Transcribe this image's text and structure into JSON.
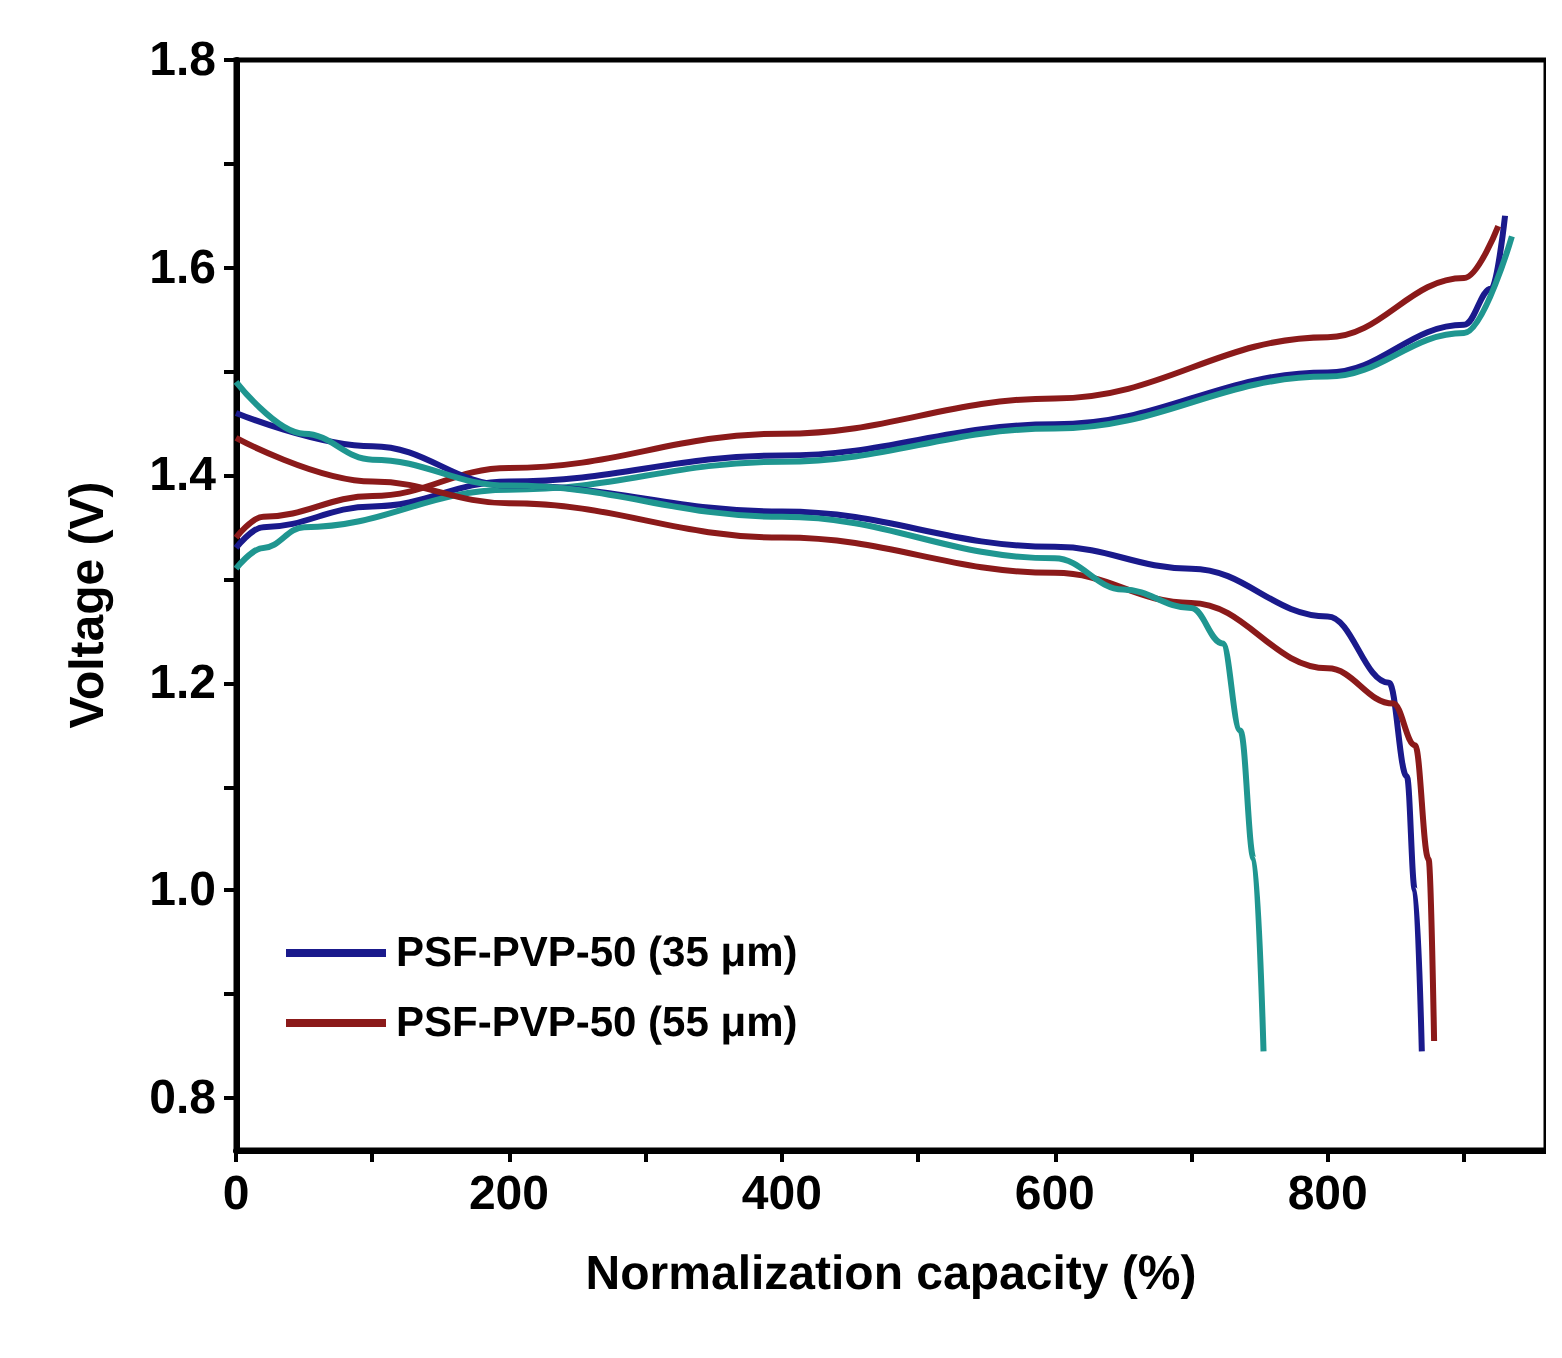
{
  "chart_data": {
    "type": "line",
    "xlabel": "Normalization capacity (%)",
    "ylabel": "Voltage (V)",
    "xlim": [
      0,
      960
    ],
    "xticks": [
      0,
      {
        "value": 100,
        "label": null
      },
      200,
      {
        "value": 300,
        "label": null
      },
      400,
      {
        "value": 500,
        "label": null
      },
      600,
      {
        "value": 700,
        "label": null
      },
      800,
      {
        "value": 900,
        "label": null
      }
    ],
    "ylim": [
      0.75,
      1.8
    ],
    "yticks": [
      {
        "value": 0.8,
        "label": "0.8"
      },
      {
        "value": 0.9,
        "label": null
      },
      {
        "value": 1.0,
        "label": "1.0"
      },
      {
        "value": 1.1,
        "label": null
      },
      {
        "value": 1.2,
        "label": "1.2"
      },
      {
        "value": 1.3,
        "label": null
      },
      {
        "value": 1.4,
        "label": "1.4"
      },
      {
        "value": 1.5,
        "label": null
      },
      {
        "value": 1.6,
        "label": "1.6"
      },
      {
        "value": 1.7,
        "label": null
      },
      {
        "value": 1.8,
        "label": "1.8"
      }
    ],
    "legend": "bottom left",
    "grid": false,
    "marker": "none",
    "line_style": "solid",
    "series": [
      {
        "name": "PSF-PVP-50 (35 μm)",
        "color": "#1a1a8c",
        "x": [
          0,
          20,
          100,
          200,
          400,
          600,
          800,
          900,
          920,
          930
        ],
        "values": [
          1.33,
          1.35,
          1.37,
          1.394,
          1.419,
          1.449,
          1.499,
          1.545,
          1.58,
          1.65
        ]
      },
      {
        "name": "PSF-PVP-50 (55 μm)",
        "color": "#8b1a1a",
        "x": [
          0,
          20,
          100,
          200,
          400,
          600,
          800,
          900,
          925
        ],
        "values": [
          1.34,
          1.36,
          1.38,
          1.407,
          1.44,
          1.474,
          1.533,
          1.59,
          1.64
        ]
      },
      {
        "color": "#1f9690",
        "x": [
          0,
          20,
          50,
          200,
          400,
          600,
          800,
          900,
          935
        ],
        "values": [
          1.31,
          1.33,
          1.35,
          1.386,
          1.413,
          1.445,
          1.495,
          1.537,
          1.63
        ]
      },
      {
        "color": "#1a1a8c",
        "x": [
          0,
          100,
          200,
          400,
          600,
          700,
          800,
          845,
          858,
          864,
          869
        ],
        "values": [
          1.46,
          1.428,
          1.39,
          1.365,
          1.331,
          1.31,
          1.264,
          1.2,
          1.11,
          1.0,
          0.845
        ]
      },
      {
        "color": "#8b1a1a",
        "x": [
          0,
          100,
          200,
          400,
          600,
          700,
          800,
          848,
          864,
          874,
          878
        ],
        "values": [
          1.436,
          1.394,
          1.373,
          1.34,
          1.306,
          1.277,
          1.214,
          1.18,
          1.14,
          1.03,
          0.855
        ]
      },
      {
        "color": "#1f9690",
        "x": [
          0,
          50,
          100,
          200,
          400,
          600,
          650,
          700,
          723,
          736,
          746,
          753
        ],
        "values": [
          1.49,
          1.44,
          1.415,
          1.39,
          1.36,
          1.32,
          1.29,
          1.272,
          1.238,
          1.154,
          1.03,
          0.845
        ]
      }
    ]
  }
}
